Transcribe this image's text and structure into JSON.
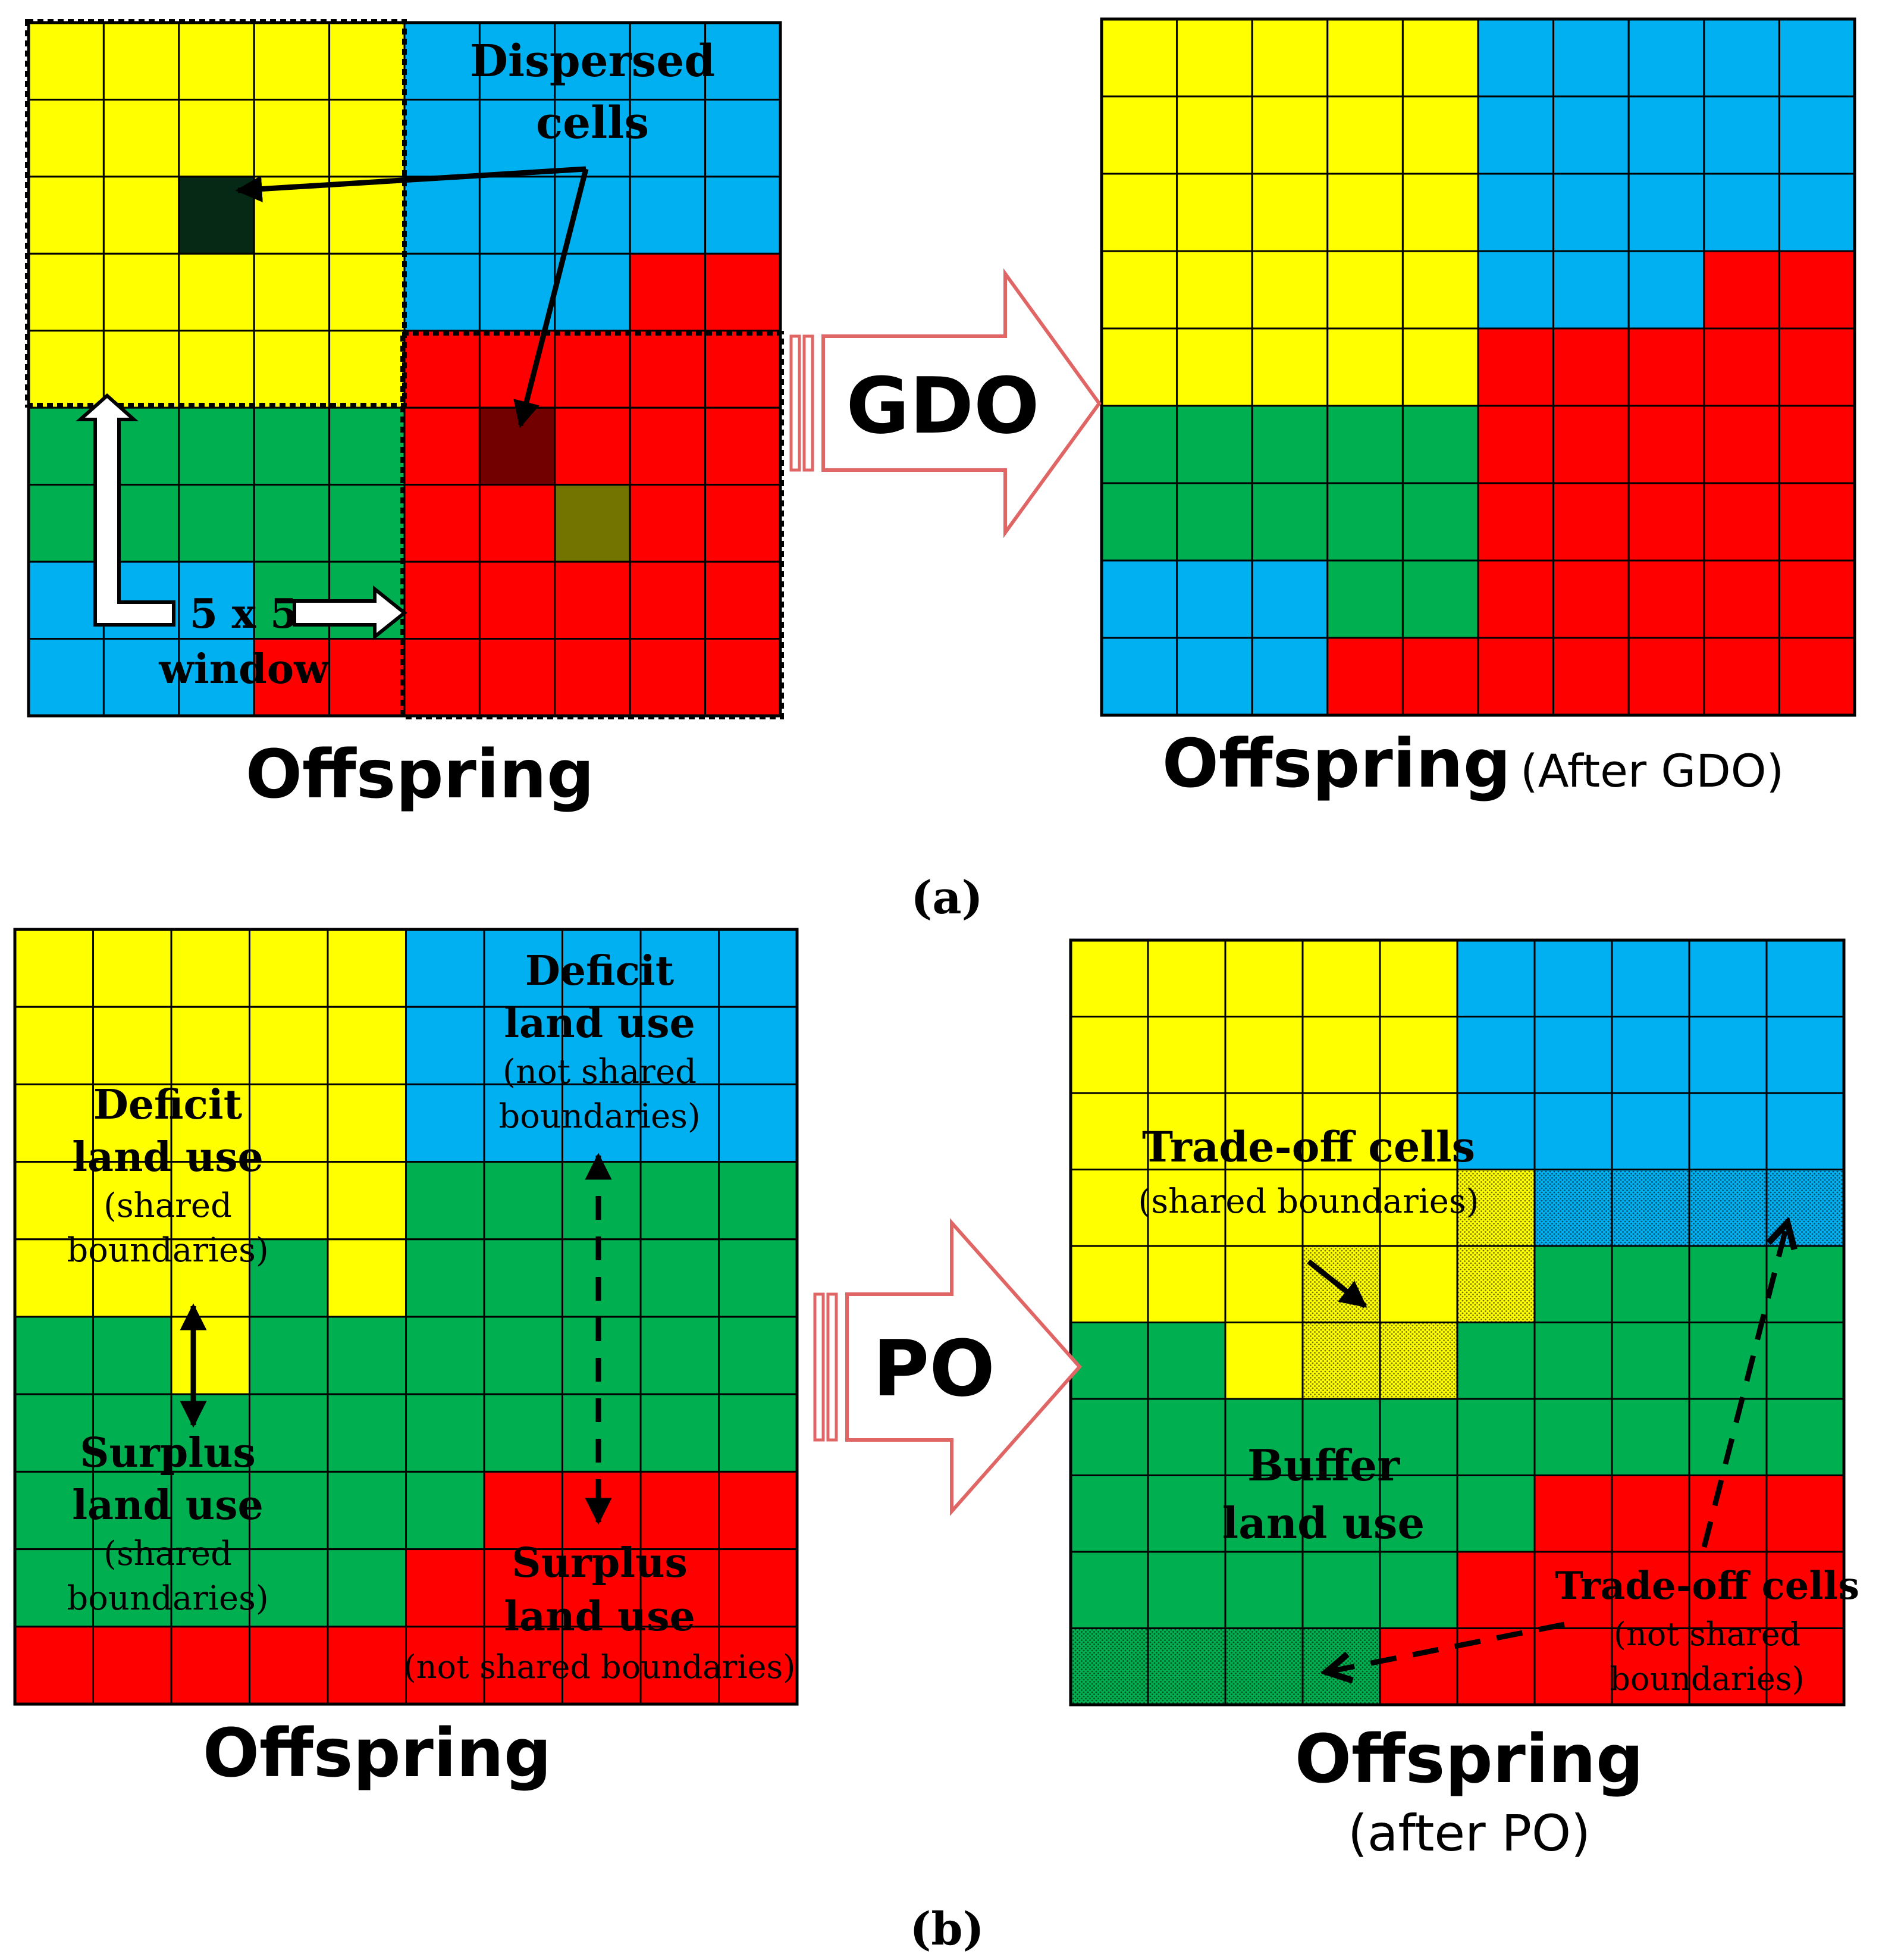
{
  "colors": {
    "yellow": "#FFFF00",
    "blue": "#00B0F0",
    "green": "#00B050",
    "red": "#FF0000",
    "dark_green": "#0B5A2E",
    "arrow_outline": "#E06666",
    "line": "#000000"
  },
  "panel_a": {
    "caption": "(a)",
    "left_grid": {
      "title": "Offspring",
      "rows": [
        "YYYYYBBBBB",
        "YYYYYBBBBB",
        "YYDYYBBBBB",
        "YYYYYBBBRR",
        "YYYYYRRRRR",
        "GGGGGRRRRR",
        "GGGGGRRYRR",
        "BBBGGRRRRR",
        "BBBRRRRRRR"
      ],
      "hatched_cells": [
        [
          2,
          2
        ],
        [
          5,
          6
        ],
        [
          6,
          7
        ]
      ],
      "label_dispersed_1": "Dispersed",
      "label_dispersed_2": "cells",
      "label_window_1": "5 x 5",
      "label_window_2": "window"
    },
    "operator_label": "GDO",
    "right_grid": {
      "title": "Offspring",
      "title_suffix": "(After GDO)",
      "rows": [
        "YYYYYBBBBB",
        "YYYYYBBBBB",
        "YYYYYBBBBB",
        "YYYYYBBBRR",
        "YYYYYRRRRR",
        "GGGGGRRRRR",
        "GGGGGRRRRR",
        "BBBGGRRRRR",
        "BBBRRRRRRR"
      ]
    }
  },
  "panel_b": {
    "caption": "(b)",
    "left_grid": {
      "title": "Offspring",
      "rows": [
        "YYYYYBBBBB",
        "YYYYYBBBBB",
        "YYYYYBBBBB",
        "YYYYYGGGGG",
        "YYYGYGGGGG",
        "GGYGGGGGGG",
        "GGGGGGGGGG",
        "GGGGGGRRRR",
        "GGGGGRRRRR",
        "RRRRRRRRRR"
      ],
      "label_deficit_shared_1": "Deficit",
      "label_deficit_shared_2": "land use",
      "label_deficit_shared_3": "(shared",
      "label_deficit_shared_4": "boundaries)",
      "label_surplus_shared_1": "Surplus",
      "label_surplus_shared_2": "land use",
      "label_surplus_shared_3": "(shared",
      "label_surplus_shared_4": "boundaries)",
      "label_deficit_ns_1": "Deficit",
      "label_deficit_ns_2": "land use",
      "label_deficit_ns_3": "(not shared",
      "label_deficit_ns_4": "boundaries)",
      "label_surplus_ns_1": "Surplus",
      "label_surplus_ns_2": "land use",
      "label_surplus_ns_3": "(not shared boundaries)"
    },
    "operator_label": "PO",
    "right_grid": {
      "title": "Offspring",
      "title_line_2": "(after PO)",
      "rows": [
        "YYYYYBBBBB",
        "YYYYYBBBBB",
        "YYYYYBBBBB",
        "YYYYYYBBBB",
        "YYYYYYGGGG",
        "GGYYYGGGGG",
        "GGGGGGGGGG",
        "GGGGGGRRRR",
        "GGGGGRRRRR",
        "GGGGRRRRRR"
      ],
      "dotted_cells": [
        [
          3,
          5
        ],
        [
          4,
          5
        ],
        [
          4,
          3
        ],
        [
          5,
          3
        ],
        [
          5,
          4
        ],
        [
          3,
          6
        ],
        [
          3,
          7
        ],
        [
          3,
          8
        ],
        [
          3,
          9
        ],
        [
          9,
          0
        ],
        [
          9,
          1
        ],
        [
          9,
          2
        ],
        [
          9,
          3
        ]
      ],
      "label_tradeoff_shared_1": "Trade-off cells",
      "label_tradeoff_shared_2": "(shared boundaries)",
      "label_buffer_1": "Buffer",
      "label_buffer_2": "land use",
      "label_tradeoff_ns_1": "Trade-off cells",
      "label_tradeoff_ns_2": "(not shared",
      "label_tradeoff_ns_3": "boundaries)"
    }
  }
}
